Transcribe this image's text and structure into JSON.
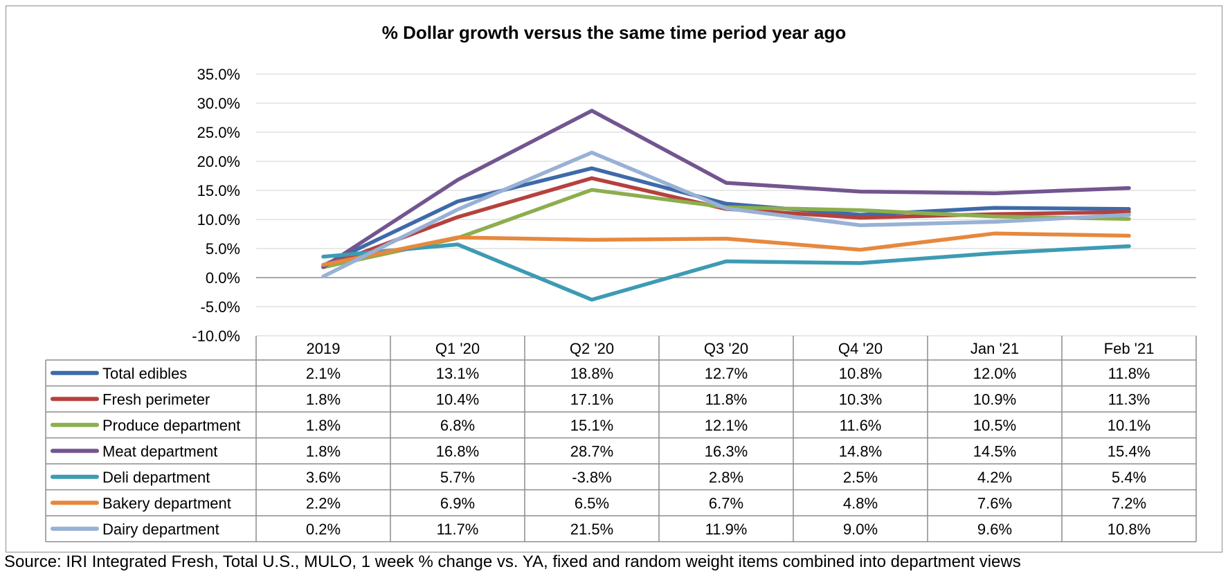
{
  "chart_data": {
    "type": "line",
    "title": "% Dollar growth versus the same time period year ago",
    "categories": [
      "2019",
      "Q1 '20",
      "Q2 '20",
      "Q3 '20",
      "Q4 '20",
      "Jan '21",
      "Feb '21"
    ],
    "y_ticks": [
      "35.0%",
      "30.0%",
      "25.0%",
      "20.0%",
      "15.0%",
      "10.0%",
      "5.0%",
      "0.0%",
      "-5.0%",
      "-10.0%"
    ],
    "ylim": [
      -10,
      35
    ],
    "y_unit": "%",
    "grid": true,
    "legend": "data-table",
    "series": [
      {
        "name": "Total edibles",
        "color": "#3e6aa8",
        "values": [
          2.1,
          13.1,
          18.8,
          12.7,
          10.8,
          12.0,
          11.8
        ],
        "labels": [
          "2.1%",
          "13.1%",
          "18.8%",
          "12.7%",
          "10.8%",
          "12.0%",
          "11.8%"
        ]
      },
      {
        "name": "Fresh perimeter",
        "color": "#b5413d",
        "values": [
          1.8,
          10.4,
          17.1,
          11.8,
          10.3,
          10.9,
          11.3
        ],
        "labels": [
          "1.8%",
          "10.4%",
          "17.1%",
          "11.8%",
          "10.3%",
          "10.9%",
          "11.3%"
        ]
      },
      {
        "name": "Produce department",
        "color": "#8cae4e",
        "values": [
          1.8,
          6.8,
          15.1,
          12.1,
          11.6,
          10.5,
          10.1
        ],
        "labels": [
          "1.8%",
          "6.8%",
          "15.1%",
          "12.1%",
          "11.6%",
          "10.5%",
          "10.1%"
        ]
      },
      {
        "name": "Meat department",
        "color": "#73558f",
        "values": [
          1.8,
          16.8,
          28.7,
          16.3,
          14.8,
          14.5,
          15.4
        ],
        "labels": [
          "1.8%",
          "16.8%",
          "28.7%",
          "16.3%",
          "14.8%",
          "14.5%",
          "15.4%"
        ]
      },
      {
        "name": "Deli department",
        "color": "#3d9bb3",
        "values": [
          3.6,
          5.7,
          -3.8,
          2.8,
          2.5,
          4.2,
          5.4
        ],
        "labels": [
          "3.6%",
          "5.7%",
          "-3.8%",
          "2.8%",
          "2.5%",
          "4.2%",
          "5.4%"
        ]
      },
      {
        "name": "Bakery department",
        "color": "#e6883e",
        "values": [
          2.2,
          6.9,
          6.5,
          6.7,
          4.8,
          7.6,
          7.2
        ],
        "labels": [
          "2.2%",
          "6.9%",
          "6.5%",
          "6.7%",
          "4.8%",
          "7.6%",
          "7.2%"
        ]
      },
      {
        "name": "Dairy department",
        "color": "#98b1d5",
        "values": [
          0.2,
          11.7,
          21.5,
          11.9,
          9.0,
          9.6,
          10.8
        ],
        "labels": [
          "0.2%",
          "11.7%",
          "21.5%",
          "11.9%",
          "9.0%",
          "9.6%",
          "10.8%"
        ]
      }
    ]
  },
  "source": "Source: IRI Integrated Fresh, Total U.S., MULO, 1 week % change vs. YA, fixed and random weight items combined into department views"
}
